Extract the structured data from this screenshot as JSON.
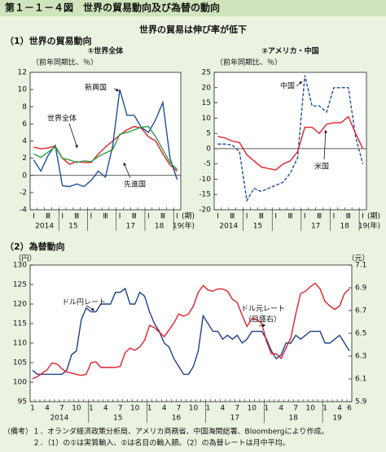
{
  "header": {
    "title": "第１－１－４図　世界の貿易動向及び為替の動向",
    "subtitle": "世界の貿易は伸び率が低下",
    "section1": "（1）世界の貿易動向",
    "section2": "（2）為替動向"
  },
  "chart_data": [
    {
      "type": "line",
      "title": "①世界全体",
      "y_label": "（前年同期比、％）",
      "categories": [
        "Ⅰ",
        null,
        "Ⅲ",
        null,
        "Ⅰ",
        null,
        "Ⅲ",
        null,
        "Ⅰ",
        null,
        "Ⅲ",
        null,
        "Ⅰ",
        null,
        "Ⅲ",
        null,
        "Ⅰ",
        null,
        "Ⅲ",
        null,
        "Ⅰ"
      ],
      "x_unit": "(期)",
      "year_labels": [
        "2014",
        "15",
        null,
        "17",
        "18",
        "19"
      ],
      "year_unit": "(年)",
      "ylim": [
        -4,
        12
      ],
      "yticks": [
        -4,
        -2,
        0,
        2,
        4,
        6,
        8,
        10,
        12
      ],
      "series": [
        {
          "name": "世界全体",
          "color": "#e3202c",
          "values": [
            3.3,
            3.1,
            3.2,
            3.4,
            2.0,
            1.3,
            1.6,
            1.5,
            1.5,
            2.5,
            3.3,
            4.0,
            4.7,
            5.3,
            5.7,
            5.5,
            4.5,
            4.0,
            2.5,
            1.2,
            0.5
          ]
        },
        {
          "name": "新興国",
          "color": "#1f4e9c",
          "values": [
            1.8,
            0.5,
            2.3,
            3.5,
            -1.2,
            -1.3,
            -1.0,
            -1.3,
            -0.6,
            0.5,
            -0.2,
            3.4,
            10.0,
            7.0,
            7.0,
            5.6,
            5.0,
            6.5,
            8.5,
            2.0,
            -0.5
          ]
        },
        {
          "name": "先進国",
          "color": "#2e9e3e",
          "values": [
            2.5,
            2.1,
            2.7,
            3.3,
            2.0,
            1.8,
            1.5,
            1.7,
            1.6,
            2.2,
            2.6,
            3.0,
            4.8,
            5.0,
            5.3,
            5.6,
            5.7,
            4.5,
            3.0,
            1.5,
            0.7
          ]
        }
      ]
    },
    {
      "type": "line",
      "title": "②アメリカ・中国",
      "y_label": "（前年同期比、％）",
      "categories": [
        "Ⅰ",
        null,
        "Ⅲ",
        null,
        "Ⅰ",
        null,
        "Ⅲ",
        null,
        "Ⅰ",
        null,
        "Ⅲ",
        null,
        "Ⅰ",
        null,
        "Ⅲ",
        null,
        "Ⅰ",
        null,
        "Ⅲ",
        null,
        "Ⅰ"
      ],
      "x_unit": "(期)",
      "year_labels": [
        "2014",
        "15",
        null,
        "17",
        "18",
        "19"
      ],
      "year_unit": "(年)",
      "ylim": [
        -20,
        25
      ],
      "yticks": [
        -20,
        -15,
        -10,
        -5,
        0,
        5,
        10,
        15,
        20,
        25
      ],
      "series": [
        {
          "name": "中国",
          "color": "#1f4e9c",
          "dash": "dashed",
          "values": [
            1.5,
            1.5,
            1.2,
            -1.0,
            -17,
            -13,
            -14,
            -13,
            -12,
            -11,
            -8,
            -3,
            24,
            14,
            14,
            12,
            20,
            20,
            20,
            4,
            -5
          ]
        },
        {
          "name": "米国",
          "color": "#e3202c",
          "values": [
            4,
            3.5,
            2.5,
            2,
            -2,
            -4,
            -6,
            -6.5,
            -7,
            -5,
            -4,
            -1,
            7,
            7,
            5,
            8,
            8.5,
            8.5,
            10.5,
            5,
            0
          ]
        }
      ]
    },
    {
      "type": "line",
      "y_label": "（円）",
      "y2_label": "（元）",
      "categories": [
        "1",
        null,
        null,
        "4",
        null,
        null,
        "7",
        null,
        null,
        "10",
        null,
        null,
        "1",
        null,
        null,
        "4",
        null,
        null,
        "7",
        null,
        null,
        "10",
        null,
        null,
        "1",
        null,
        null,
        "4",
        null,
        null,
        "7",
        null,
        null,
        "10",
        null,
        null,
        "1",
        null,
        null,
        "4",
        null,
        null,
        "7",
        null,
        null,
        "10",
        null,
        null,
        "1",
        null,
        null,
        "4",
        null,
        null,
        "7",
        null,
        null,
        "10",
        null,
        null,
        "1",
        null,
        null,
        "4",
        null,
        "6"
      ],
      "year_labels": [
        "2014",
        "15",
        "16",
        "17",
        "18",
        "19"
      ],
      "ylim": [
        95,
        130
      ],
      "yticks": [
        95,
        100,
        105,
        110,
        115,
        120,
        125,
        130
      ],
      "y2lim": [
        5.9,
        7.1
      ],
      "y2ticks": [
        5.9,
        6.1,
        6.3,
        6.5,
        6.7,
        6.9,
        7.1
      ],
      "annotation": "（目盛右）",
      "series": [
        {
          "name": "ドル円レート",
          "color": "#1f3f8c",
          "values": [
            103,
            102,
            102,
            102,
            102,
            102,
            102,
            103,
            107,
            108,
            116,
            119,
            118,
            118,
            120,
            120,
            120,
            123,
            123,
            124,
            120,
            120,
            123,
            122,
            118,
            115,
            113,
            110,
            109,
            106,
            104,
            102,
            102,
            104,
            108,
            117,
            115,
            113,
            113,
            111,
            112,
            111,
            112,
            110,
            111,
            113,
            113,
            113,
            111,
            108,
            106,
            107,
            110,
            110,
            112,
            111,
            112,
            113,
            113,
            113,
            110,
            110,
            111,
            112,
            110,
            108
          ]
        },
        {
          "name": "ドル元レート",
          "color": "#e3202c",
          "axis": "y2",
          "values": [
            6.1,
            6.12,
            6.15,
            6.18,
            6.24,
            6.23,
            6.19,
            6.16,
            6.15,
            6.14,
            6.13,
            6.14,
            6.24,
            6.25,
            6.2,
            6.2,
            6.2,
            6.2,
            6.21,
            6.33,
            6.37,
            6.35,
            6.38,
            6.44,
            6.57,
            6.55,
            6.51,
            6.47,
            6.53,
            6.59,
            6.67,
            6.65,
            6.67,
            6.74,
            6.86,
            6.92,
            6.88,
            6.87,
            6.89,
            6.89,
            6.87,
            6.8,
            6.77,
            6.66,
            6.56,
            6.63,
            6.62,
            6.59,
            6.43,
            6.32,
            6.32,
            6.28,
            6.37,
            6.46,
            6.67,
            6.85,
            6.87,
            6.91,
            6.94,
            6.89,
            6.78,
            6.74,
            6.71,
            6.74,
            6.85,
            6.89
          ]
        }
      ]
    }
  ],
  "notes": {
    "label": "（備考）",
    "lines": [
      "１．オランダ経済政策分析局、アメリカ商務省、中国海関総署、Bloombergにより作成。",
      "２．（1）の①は実質輸入、②は名目の輸入額。（2）の為替レートは月中平均。"
    ]
  }
}
